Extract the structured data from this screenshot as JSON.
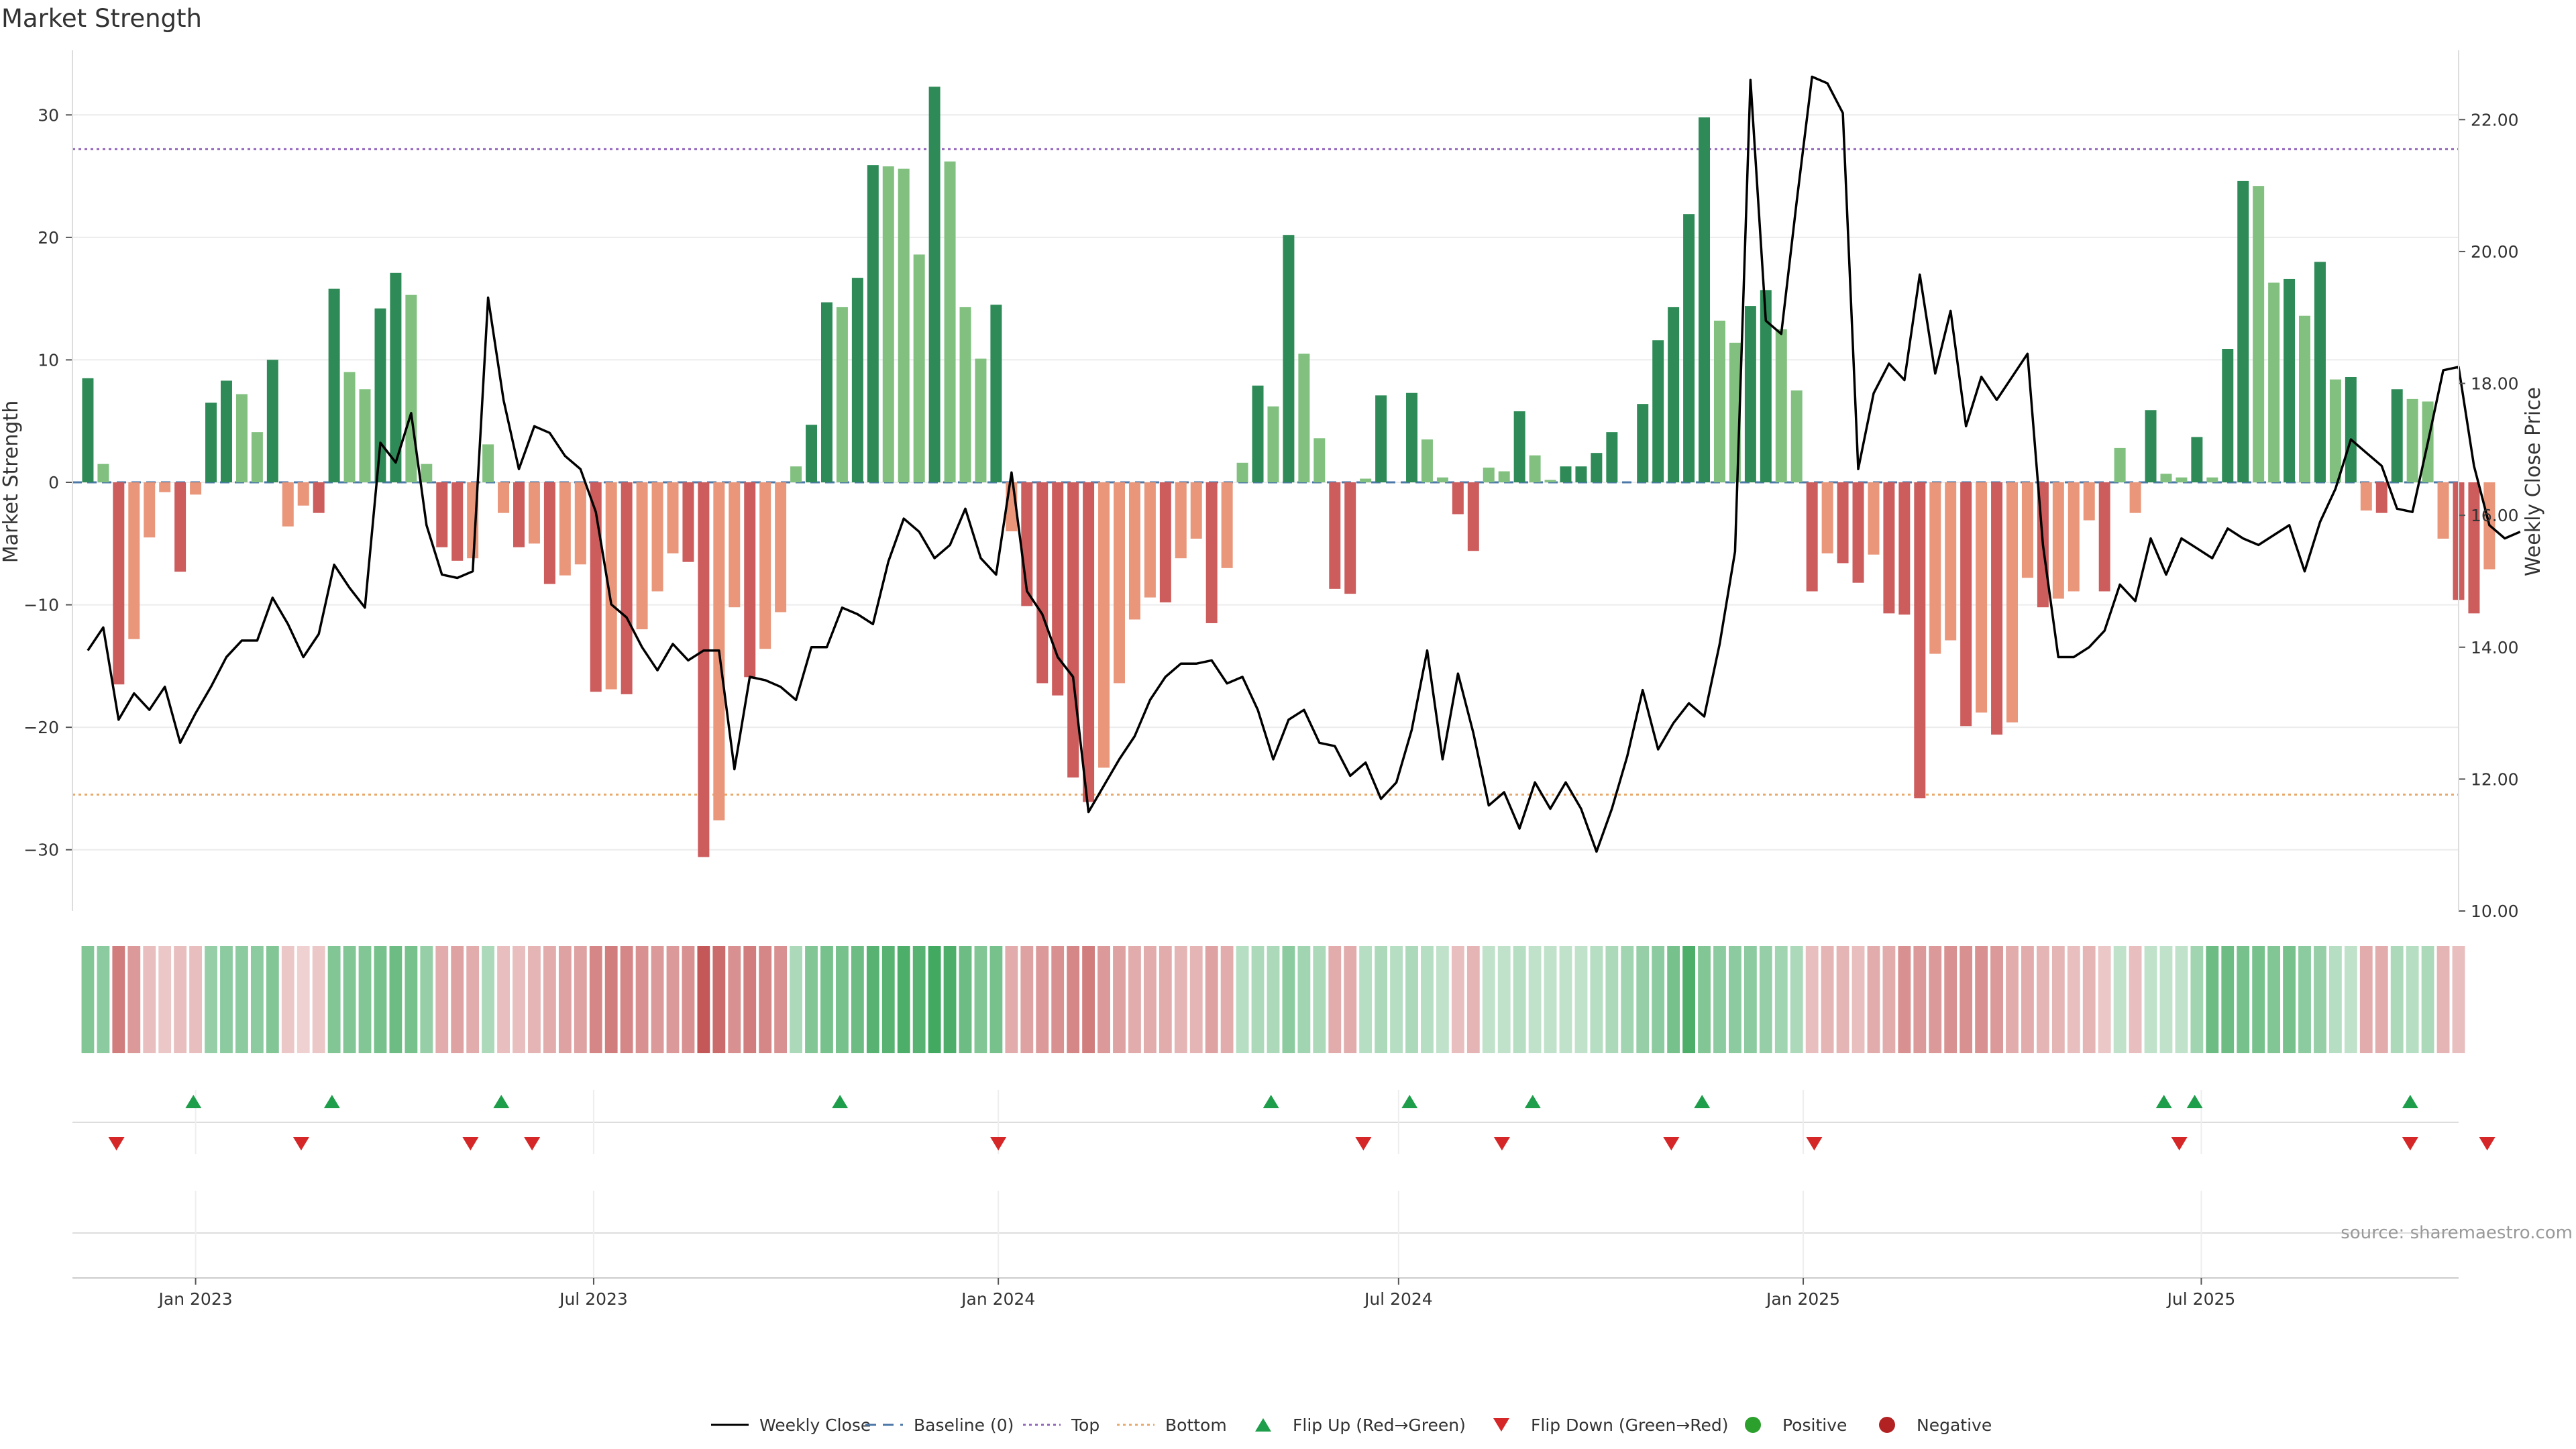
{
  "chart_data": {
    "type": "bar",
    "title": "Market Strength",
    "ylabel_left": "Market Strength",
    "ylabel_right": "Weekly Close Price",
    "ylim_left": [
      -35,
      35
    ],
    "ylim_right": [
      10,
      23
    ],
    "yticks_left": [
      30,
      20,
      10,
      0,
      -10,
      -20,
      -30
    ],
    "yticks_right": [
      "22.00",
      "20.00",
      "18.00",
      "16.00",
      "14.00",
      "12.00",
      "10.00"
    ],
    "x_range": [
      "2022-11-06",
      "2025-10-26"
    ],
    "xticks": [
      {
        "date": "2023-01-01",
        "label": "Jan 2023"
      },
      {
        "date": "2023-07-01",
        "label": "Jul 2023"
      },
      {
        "date": "2024-01-01",
        "label": "Jan 2024"
      },
      {
        "date": "2024-07-01",
        "label": "Jul 2024"
      },
      {
        "date": "2025-01-01",
        "label": "Jan 2025"
      },
      {
        "date": "2025-07-01",
        "label": "Jul 2025"
      }
    ],
    "start_date": "2022-11-13",
    "weeks": 154,
    "strength": [
      8.5,
      1.5,
      -16.5,
      -12.8,
      -4.5,
      -0.8,
      -7.3,
      -1,
      6.5,
      8.3,
      7.2,
      4.1,
      10,
      -3.6,
      -1.9,
      -2.5,
      15.8,
      9,
      7.6,
      14.2,
      17.1,
      15.3,
      1.5,
      -5.3,
      -6.4,
      -6.2,
      3.1,
      -2.5,
      -5.3,
      -5,
      -8.3,
      -7.6,
      -6.7,
      -17.1,
      -16.9,
      -17.3,
      -12,
      -8.9,
      -5.8,
      -6.5,
      -30.6,
      -27.6,
      -10.2,
      -15.9,
      -13.6,
      -10.6,
      1.3,
      4.7,
      14.7,
      14.3,
      16.7,
      25.9,
      25.8,
      25.6,
      18.6,
      32.3,
      26.2,
      14.3,
      10.1,
      14.5,
      -4,
      -10.1,
      -16.4,
      -17.4,
      -24.1,
      -26.1,
      -23.3,
      -16.4,
      -11.2,
      -9.4,
      -9.8,
      -6.2,
      -4.6,
      -11.5,
      -7,
      1.6,
      7.9,
      6.2,
      20.2,
      10.5,
      3.6,
      -8.7,
      -9.1,
      0.3,
      7.1,
      0,
      7.3,
      3.5,
      0.4,
      -2.6,
      -5.6,
      1.2,
      0.9,
      5.8,
      2.2,
      0.2,
      1.3,
      1.3,
      2.4,
      4.1,
      0,
      6.4,
      11.6,
      14.3,
      21.9,
      29.8,
      13.2,
      11.4,
      14.4,
      15.7,
      12.5,
      7.5,
      -8.9,
      -5.8,
      -6.6,
      -8.2,
      -5.9,
      -10.7,
      -10.8,
      -25.8,
      -14,
      -12.9,
      -19.9,
      -18.8,
      -20.6,
      -19.6,
      -7.8,
      -10.2,
      -9.5,
      -8.9,
      -3.1,
      -8.9,
      2.8,
      -2.5,
      5.9,
      0.7,
      0.4,
      3.7,
      0.4,
      10.9,
      24.6,
      24.2,
      16.3,
      16.6,
      13.6,
      18,
      8.4,
      8.6,
      -2.3,
      -2.5,
      7.6,
      6.8,
      6.6,
      -4.6,
      -9.6,
      -10.7,
      -7.1
    ],
    "series": [
      {
        "name": "Weekly Close",
        "values": [
          13.95,
          14.3,
          12.9,
          13.3,
          13.05,
          13.4,
          12.55,
          13,
          13.4,
          13.85,
          14.1,
          14.1,
          14.75,
          14.35,
          13.85,
          14.2,
          15.25,
          14.9,
          14.6,
          17.1,
          16.8,
          17.55,
          15.85,
          15.1,
          15.05,
          15.15,
          19.3,
          17.75,
          16.7,
          17.35,
          17.25,
          16.9,
          16.7,
          16.05,
          14.65,
          14.45,
          14,
          13.65,
          14.05,
          13.8,
          13.95,
          13.95,
          12.15,
          13.55,
          13.5,
          13.4,
          13.2,
          14,
          14,
          14.6,
          14.5,
          14.35,
          15.3,
          15.95,
          15.75,
          15.35,
          15.55,
          16.1,
          15.35,
          15.1,
          16.65,
          14.85,
          14.5,
          13.85,
          13.55,
          11.5,
          11.9,
          12.3,
          12.65,
          13.2,
          13.55,
          13.75,
          13.75,
          13.8,
          13.45,
          13.55,
          13.05,
          12.3,
          12.9,
          13.05,
          12.55,
          12.5,
          12.05,
          12.25,
          11.7,
          11.95,
          12.75,
          13.95,
          12.3,
          13.6,
          12.7,
          11.6,
          11.8,
          11.25,
          11.95,
          11.55,
          11.95,
          11.55,
          10.9,
          11.55,
          12.35,
          13.35,
          12.45,
          12.85,
          13.15,
          12.95,
          14.05,
          15.45,
          22.6,
          18.95,
          18.75,
          20.75,
          22.65,
          22.55,
          22.1,
          16.7,
          17.85,
          18.3,
          18.05,
          19.65,
          18.15,
          19.1,
          17.35,
          18.1,
          17.75,
          18.1,
          18.45,
          15.55,
          13.85,
          13.85,
          14,
          14.25,
          14.95,
          14.7,
          15.65,
          15.1,
          15.65,
          15.5,
          15.35,
          15.8,
          15.65,
          15.55,
          15.7,
          15.85,
          15.15,
          15.9,
          16.4,
          17.15,
          16.95,
          16.75,
          16.1,
          16.05,
          17.1,
          18.2,
          18.25,
          16.75,
          15.85,
          15.65,
          15.75
        ]
      }
    ],
    "top_line": 27.2,
    "bottom_line": -25.5,
    "heat_band": [
      0.6,
      0.55,
      0.7,
      0.55,
      0.35,
      0.3,
      0.35,
      0.35,
      0.5,
      0.55,
      0.55,
      0.55,
      0.6,
      0.3,
      0.25,
      0.3,
      0.6,
      0.6,
      0.6,
      0.65,
      0.7,
      0.65,
      0.5,
      0.45,
      0.5,
      0.45,
      0.4,
      0.35,
      0.35,
      0.4,
      0.45,
      0.5,
      0.5,
      0.65,
      0.7,
      0.65,
      0.6,
      0.55,
      0.55,
      0.6,
      0.9,
      0.8,
      0.6,
      0.7,
      0.65,
      0.6,
      0.4,
      0.6,
      0.65,
      0.65,
      0.7,
      0.8,
      0.8,
      0.85,
      0.8,
      0.9,
      0.85,
      0.7,
      0.6,
      0.65,
      0.45,
      0.5,
      0.55,
      0.6,
      0.65,
      0.7,
      0.55,
      0.5,
      0.45,
      0.45,
      0.45,
      0.4,
      0.4,
      0.5,
      0.45,
      0.35,
      0.4,
      0.4,
      0.55,
      0.45,
      0.4,
      0.45,
      0.45,
      0.35,
      0.4,
      0.35,
      0.4,
      0.35,
      0.3,
      0.35,
      0.4,
      0.3,
      0.3,
      0.35,
      0.3,
      0.3,
      0.3,
      0.3,
      0.35,
      0.4,
      0.45,
      0.5,
      0.55,
      0.65,
      0.85,
      0.6,
      0.55,
      0.55,
      0.55,
      0.5,
      0.45,
      0.4,
      0.35,
      0.4,
      0.4,
      0.35,
      0.45,
      0.45,
      0.6,
      0.55,
      0.55,
      0.6,
      0.6,
      0.6,
      0.55,
      0.45,
      0.45,
      0.4,
      0.4,
      0.35,
      0.4,
      0.3,
      0.3,
      0.35,
      0.3,
      0.3,
      0.3,
      0.45,
      0.7,
      0.7,
      0.65,
      0.65,
      0.6,
      0.65,
      0.55,
      0.5,
      0.35,
      0.3,
      0.45,
      0.45,
      0.4,
      0.35,
      0.4,
      0.4,
      0.35
    ],
    "flips_up": [
      "2022-12-31",
      "2023-03-04",
      "2023-05-20",
      "2023-10-21",
      "2024-05-04",
      "2024-07-06",
      "2024-08-31",
      "2024-11-16",
      "2025-06-14",
      "2025-06-28",
      "2025-10-04"
    ],
    "flips_down": [
      "2022-11-26",
      "2023-02-18",
      "2023-05-06",
      "2023-06-03",
      "2024-01-01",
      "2024-06-15",
      "2024-08-17",
      "2024-11-02",
      "2025-01-06",
      "2025-06-21",
      "2025-10-04",
      "2025-11-08"
    ],
    "colors": {
      "pos_strong": "#2e8b57",
      "pos_weak": "#81c07f",
      "neg_strong": "#cd5c5c",
      "neg_weak": "#e9967a",
      "flip_up": "#1e9e4a",
      "flip_down": "#d62728",
      "top_line": "#9467bd",
      "bottom_line": "#e8a96b",
      "baseline": "#4c78a8",
      "price": "#000000",
      "positive": "#2ca02c",
      "negative": "#b22222"
    },
    "legend": [
      {
        "label": "Weekly Close",
        "kind": "line"
      },
      {
        "label": "Baseline (0)",
        "kind": "dash"
      },
      {
        "label": "Top",
        "kind": "dot-purple"
      },
      {
        "label": "Bottom",
        "kind": "dot-orange"
      },
      {
        "label": "Flip Up (Red→Green)",
        "kind": "tri-up"
      },
      {
        "label": "Flip Down (Green→Red)",
        "kind": "tri-down"
      },
      {
        "label": "Positive",
        "kind": "circle-green"
      },
      {
        "label": "Negative",
        "kind": "circle-red"
      }
    ],
    "legend_position": "bottom-center",
    "source": "source: sharemaestro.com"
  }
}
